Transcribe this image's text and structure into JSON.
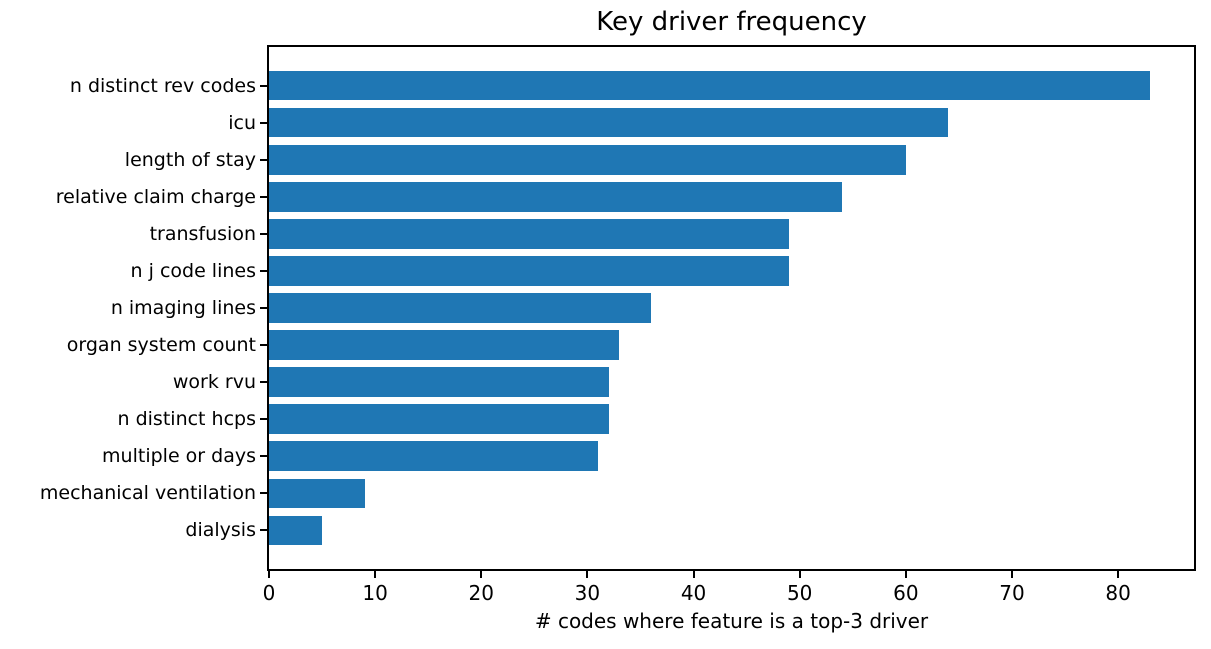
{
  "chart_data": {
    "type": "bar",
    "orientation": "horizontal",
    "title": "Key driver frequency",
    "xlabel": "# codes where feature is a top-3 driver",
    "ylabel": "",
    "categories": [
      "n distinct rev codes",
      "icu",
      "length of stay",
      "relative claim charge",
      "transfusion",
      "n j code lines",
      "n imaging lines",
      "organ system count",
      "work rvu",
      "n distinct hcps",
      "multiple or days",
      "mechanical ventilation",
      "dialysis"
    ],
    "values": [
      83,
      64,
      60,
      54,
      49,
      49,
      36,
      33,
      32,
      32,
      31,
      9,
      5
    ],
    "xlim": [
      0,
      87.15
    ],
    "x_ticks": [
      0,
      10,
      20,
      30,
      40,
      50,
      60,
      70,
      80
    ],
    "grid": false,
    "legend_position": "none",
    "bar_height_ratio": 0.8
  },
  "colors": {
    "bar": "#1f77b4",
    "spine": "#000000",
    "text": "#000000",
    "background": "#ffffff"
  }
}
